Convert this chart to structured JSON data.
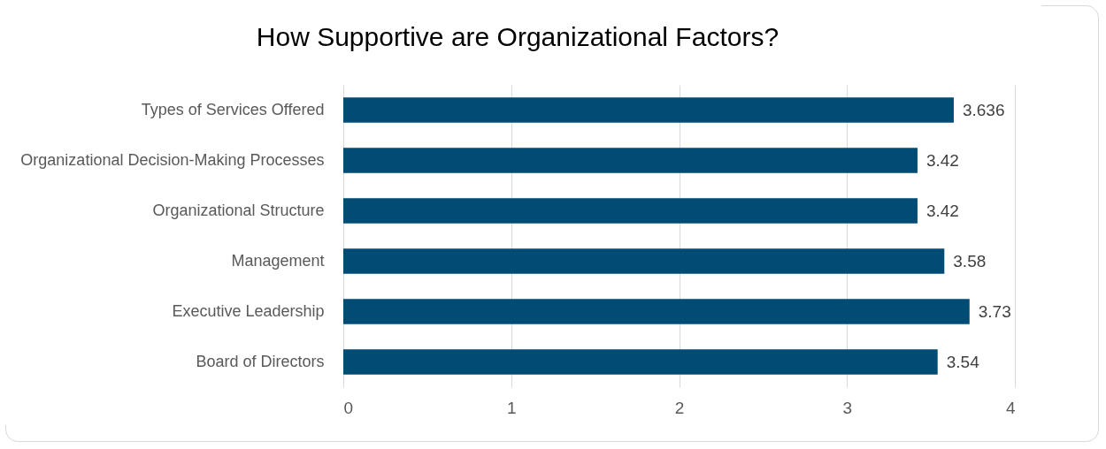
{
  "chart_data": {
    "type": "bar",
    "orientation": "horizontal",
    "title": "How Supportive are Organizational Factors?",
    "categories": [
      "Types of Services Offered",
      "Organizational Decision-Making Processes",
      "Organizational Structure",
      "Management",
      "Executive Leadership",
      "Board of Directors"
    ],
    "values": [
      3.636,
      3.42,
      3.42,
      3.58,
      3.73,
      3.54
    ],
    "color": "#004c74",
    "xlim": [
      0,
      4
    ],
    "xticks": [
      0,
      1,
      2,
      3,
      4
    ],
    "grid": "x",
    "data_labels": true
  }
}
